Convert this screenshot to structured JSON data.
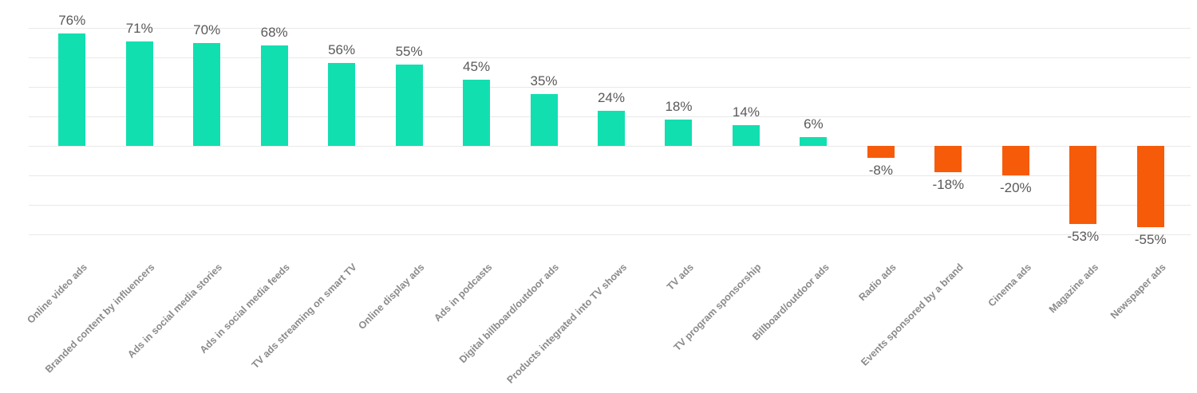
{
  "chart_data": {
    "type": "bar",
    "title": "",
    "xlabel": "",
    "ylabel": "",
    "categories": [
      "Online video ads",
      "Branded content by influencers",
      "Ads in social media stories",
      "Ads in social media feeds",
      "TV ads streaming on smart TV",
      "Online display ads",
      "Ads in podcasts",
      "Digital billboard/outdoor ads",
      "Products integrated into TV shows",
      "TV ads",
      "TV program sponsorship",
      "Billboard/outdoor ads",
      "Radio ads",
      "Events sponsored by a brand",
      "Cinema ads",
      "Magazine ads",
      "Newspaper ads"
    ],
    "values": [
      76,
      71,
      70,
      68,
      56,
      55,
      45,
      35,
      24,
      18,
      14,
      6,
      -8,
      -18,
      -20,
      -53,
      -55
    ],
    "value_labels": [
      "76%",
      "71%",
      "70%",
      "68%",
      "56%",
      "55%",
      "45%",
      "35%",
      "24%",
      "18%",
      "14%",
      "6%",
      "-8%",
      "-18%",
      "-20%",
      "-53%",
      "-55%"
    ],
    "ylim": [
      -60,
      80
    ],
    "grid_step": 20,
    "grid": true,
    "legend": false,
    "colors": {
      "positive_bar": "#12dfb0",
      "negative_bar": "#f65b0a",
      "gridline": "#e9e9e9",
      "value_label": "#595959",
      "category_label": "#8a8a8a",
      "background": "#ffffff"
    }
  }
}
